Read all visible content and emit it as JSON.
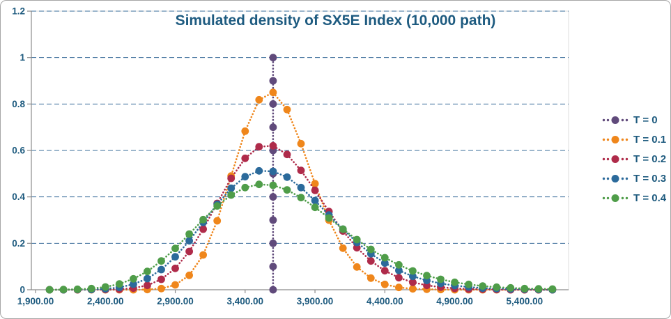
{
  "chart_data": {
    "type": "line",
    "title": "Simulated density of SX5E Index (10,000 path)",
    "xlabel": "",
    "ylabel": "",
    "xlim": [
      1870,
      5715
    ],
    "ylim": [
      0,
      1.2
    ],
    "grid": "horizontal-dashed",
    "legend_position": "right",
    "colors": {
      "grid": "#3a6c99",
      "axis": "#8c8c8c",
      "plot_border": "#dcdcdc",
      "text": "#1d5a7e"
    },
    "x_ticks": {
      "values": [
        1900,
        2400,
        2900,
        3400,
        3900,
        4400,
        4900,
        5400
      ],
      "labels": [
        "1,900.00",
        "2,400.00",
        "2,900.00",
        "3,400.00",
        "3,900.00",
        "4,400.00",
        "4,900.00",
        "5,400.00"
      ]
    },
    "y_ticks": {
      "values": [
        0,
        0.2,
        0.4,
        0.6,
        0.8,
        1,
        1.2
      ],
      "labels": [
        "0",
        "0.2",
        "0.4",
        "0.6",
        "0.8",
        "1",
        "1.2"
      ]
    },
    "x": [
      2000,
      2100,
      2200,
      2300,
      2400,
      2500,
      2600,
      2700,
      2800,
      2900,
      3000,
      3100,
      3200,
      3300,
      3400,
      3500,
      3600,
      3700,
      3800,
      3900,
      4000,
      4100,
      4200,
      4300,
      4400,
      4500,
      4600,
      4700,
      4800,
      4900,
      5000,
      5100,
      5200,
      5300,
      5400,
      5500,
      5600
    ],
    "series": [
      {
        "name": "T = 0",
        "color": "#604a7b",
        "style": "spike",
        "spike_x": 3600,
        "spike_values": [
          0,
          0.1,
          0.2,
          0.3,
          0.4,
          0.5,
          0.6,
          0.7,
          0.8,
          0.9,
          1.0
        ]
      },
      {
        "name": "T = 0.1",
        "color": "#ef861b",
        "style": "dotted-markers",
        "values": [
          0,
          0,
          0,
          0,
          0,
          0,
          0,
          0.001,
          0.005,
          0.021,
          0.062,
          0.15,
          0.297,
          0.49,
          0.683,
          0.818,
          0.85,
          0.776,
          0.629,
          0.457,
          0.3,
          0.179,
          0.098,
          0.05,
          0.023,
          0.01,
          0.004,
          0.002,
          0.001,
          0,
          0,
          0,
          0,
          0,
          0,
          0,
          0
        ]
      },
      {
        "name": "T = 0.2",
        "color": "#af2b4a",
        "style": "dotted-markers",
        "values": [
          0,
          0,
          0,
          0.001,
          0.001,
          0.002,
          0.007,
          0.019,
          0.045,
          0.092,
          0.165,
          0.261,
          0.372,
          0.48,
          0.566,
          0.616,
          0.62,
          0.583,
          0.514,
          0.428,
          0.337,
          0.253,
          0.181,
          0.124,
          0.082,
          0.052,
          0.032,
          0.019,
          0.011,
          0.006,
          0.003,
          0.002,
          0.001,
          0,
          0,
          0,
          0
        ]
      },
      {
        "name": "T = 0.3",
        "color": "#2b6a9b",
        "style": "dotted-markers",
        "values": [
          0,
          0,
          0.001,
          0.001,
          0.004,
          0.01,
          0.024,
          0.048,
          0.087,
          0.142,
          0.211,
          0.29,
          0.368,
          0.437,
          0.487,
          0.512,
          0.51,
          0.485,
          0.44,
          0.384,
          0.322,
          0.261,
          0.204,
          0.155,
          0.115,
          0.083,
          0.058,
          0.04,
          0.027,
          0.018,
          0.012,
          0.007,
          0.005,
          0.003,
          0.002,
          0.001,
          0
        ]
      },
      {
        "name": "T = 0.4",
        "color": "#4f9d49",
        "style": "dotted-markers",
        "values": [
          0,
          0.001,
          0.002,
          0.005,
          0.012,
          0.025,
          0.047,
          0.079,
          0.124,
          0.178,
          0.24,
          0.302,
          0.361,
          0.408,
          0.44,
          0.454,
          0.45,
          0.43,
          0.397,
          0.355,
          0.309,
          0.261,
          0.216,
          0.174,
          0.138,
          0.107,
          0.081,
          0.061,
          0.045,
          0.032,
          0.023,
          0.016,
          0.011,
          0.008,
          0.005,
          0.004,
          0.003
        ]
      }
    ]
  }
}
